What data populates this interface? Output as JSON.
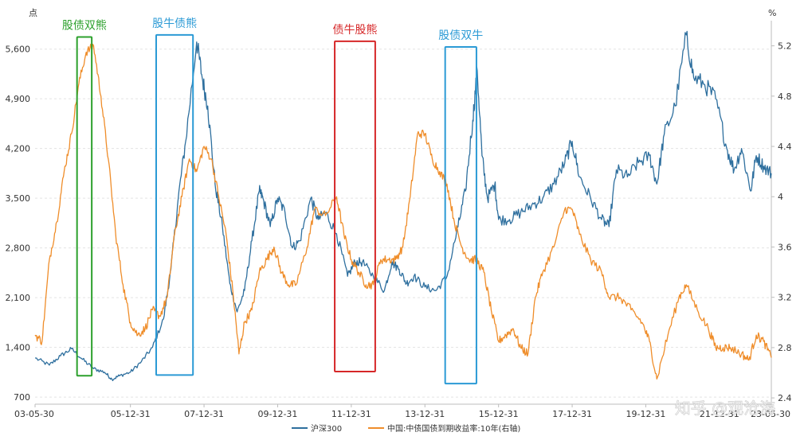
{
  "chart_data": {
    "type": "line",
    "left_unit": "点",
    "right_unit": "%",
    "y_left": {
      "ticks": [
        700,
        1400,
        2100,
        2800,
        3500,
        4200,
        4900,
        5600
      ],
      "tick_labels": [
        "700",
        "1,400",
        "2,100",
        "2,800",
        "3,500",
        "4,200",
        "4,900",
        "5,600"
      ],
      "range": [
        600,
        6000
      ]
    },
    "y_right": {
      "ticks": [
        2.4,
        2.8,
        3.2,
        3.6,
        4.0,
        4.4,
        4.8,
        5.2
      ],
      "tick_labels": [
        "2.4",
        "2.8",
        "3.2",
        "3.6",
        "4",
        "4.4",
        "4.8",
        "5.2"
      ],
      "range": [
        2.35,
        5.4
      ]
    },
    "x_axis": {
      "range": [
        2003.41,
        2023.41
      ],
      "ticks": [
        2003.41,
        2006.0,
        2008.0,
        2010.0,
        2012.0,
        2014.0,
        2016.0,
        2018.0,
        2020.0,
        2022.0,
        2023.41
      ],
      "tick_labels": [
        "03-05-30",
        "05-12-31",
        "07-12-31",
        "09-12-31",
        "11-12-31",
        "13-12-31",
        "15-12-31",
        "17-12-31",
        "19-12-31",
        "21-12-31",
        "23-05-30"
      ]
    },
    "grid": true,
    "legend_position": "bottom",
    "series": [
      {
        "name": "沪深300",
        "axis": "left",
        "color": "#2e6f9e",
        "points": [
          [
            2003.41,
            1250
          ],
          [
            2003.8,
            1150
          ],
          [
            2004.1,
            1280
          ],
          [
            2004.4,
            1380
          ],
          [
            2004.7,
            1230
          ],
          [
            2005.0,
            1100
          ],
          [
            2005.3,
            1050
          ],
          [
            2005.5,
            950
          ],
          [
            2005.7,
            1000
          ],
          [
            2006.0,
            1050
          ],
          [
            2006.3,
            1200
          ],
          [
            2006.6,
            1400
          ],
          [
            2006.9,
            1800
          ],
          [
            2007.1,
            2500
          ],
          [
            2007.3,
            3500
          ],
          [
            2007.5,
            4300
          ],
          [
            2007.8,
            5700
          ],
          [
            2007.95,
            5200
          ],
          [
            2008.1,
            4800
          ],
          [
            2008.3,
            3700
          ],
          [
            2008.5,
            3100
          ],
          [
            2008.7,
            2300
          ],
          [
            2008.9,
            1900
          ],
          [
            2009.1,
            2200
          ],
          [
            2009.3,
            2900
          ],
          [
            2009.5,
            3600
          ],
          [
            2009.6,
            3500
          ],
          [
            2009.8,
            3100
          ],
          [
            2010.0,
            3500
          ],
          [
            2010.2,
            3300
          ],
          [
            2010.4,
            2800
          ],
          [
            2010.6,
            2900
          ],
          [
            2010.9,
            3500
          ],
          [
            2011.1,
            3200
          ],
          [
            2011.3,
            3300
          ],
          [
            2011.6,
            3000
          ],
          [
            2011.9,
            2400
          ],
          [
            2012.1,
            2600
          ],
          [
            2012.3,
            2600
          ],
          [
            2012.6,
            2400
          ],
          [
            2012.9,
            2200
          ],
          [
            2013.1,
            2600
          ],
          [
            2013.3,
            2500
          ],
          [
            2013.5,
            2300
          ],
          [
            2013.7,
            2400
          ],
          [
            2014.0,
            2250
          ],
          [
            2014.3,
            2200
          ],
          [
            2014.6,
            2400
          ],
          [
            2014.9,
            3100
          ],
          [
            2015.1,
            3600
          ],
          [
            2015.3,
            4600
          ],
          [
            2015.42,
            5300
          ],
          [
            2015.55,
            4100
          ],
          [
            2015.7,
            3500
          ],
          [
            2015.9,
            3700
          ],
          [
            2016.0,
            3200
          ],
          [
            2016.3,
            3200
          ],
          [
            2016.6,
            3300
          ],
          [
            2016.9,
            3400
          ],
          [
            2017.2,
            3500
          ],
          [
            2017.5,
            3700
          ],
          [
            2017.8,
            4000
          ],
          [
            2018.0,
            4300
          ],
          [
            2018.2,
            3800
          ],
          [
            2018.5,
            3500
          ],
          [
            2018.8,
            3200
          ],
          [
            2019.0,
            3100
          ],
          [
            2019.2,
            3900
          ],
          [
            2019.5,
            3800
          ],
          [
            2019.8,
            4000
          ],
          [
            2020.1,
            4100
          ],
          [
            2020.3,
            3700
          ],
          [
            2020.5,
            4400
          ],
          [
            2020.8,
            4800
          ],
          [
            2021.1,
            5800
          ],
          [
            2021.3,
            5200
          ],
          [
            2021.6,
            5100
          ],
          [
            2021.9,
            4900
          ],
          [
            2022.2,
            4200
          ],
          [
            2022.4,
            3900
          ],
          [
            2022.6,
            4200
          ],
          [
            2022.85,
            3600
          ],
          [
            2023.0,
            4100
          ],
          [
            2023.2,
            3950
          ],
          [
            2023.41,
            3850
          ]
        ]
      },
      {
        "name": "中国:中债国债到期收益率:10年(右轴)",
        "axis": "right",
        "color": "#ef8d2a",
        "points": [
          [
            2003.41,
            2.9
          ],
          [
            2003.6,
            2.85
          ],
          [
            2003.8,
            3.5
          ],
          [
            2004.0,
            3.8
          ],
          [
            2004.2,
            4.2
          ],
          [
            2004.4,
            4.5
          ],
          [
            2004.6,
            4.9
          ],
          [
            2004.8,
            5.15
          ],
          [
            2005.0,
            5.2
          ],
          [
            2005.2,
            4.8
          ],
          [
            2005.4,
            4.3
          ],
          [
            2005.6,
            3.7
          ],
          [
            2005.8,
            3.3
          ],
          [
            2006.0,
            3.0
          ],
          [
            2006.2,
            2.9
          ],
          [
            2006.4,
            2.95
          ],
          [
            2006.6,
            3.1
          ],
          [
            2006.8,
            3.05
          ],
          [
            2007.0,
            3.2
          ],
          [
            2007.2,
            3.7
          ],
          [
            2007.4,
            4.0
          ],
          [
            2007.6,
            4.3
          ],
          [
            2007.8,
            4.2
          ],
          [
            2008.0,
            4.4
          ],
          [
            2008.2,
            4.3
          ],
          [
            2008.4,
            4.0
          ],
          [
            2008.6,
            3.7
          ],
          [
            2008.8,
            3.2
          ],
          [
            2008.95,
            2.75
          ],
          [
            2009.1,
            3.0
          ],
          [
            2009.3,
            3.1
          ],
          [
            2009.5,
            3.4
          ],
          [
            2009.7,
            3.5
          ],
          [
            2009.9,
            3.6
          ],
          [
            2010.1,
            3.4
          ],
          [
            2010.3,
            3.3
          ],
          [
            2010.5,
            3.3
          ],
          [
            2010.8,
            3.6
          ],
          [
            2011.0,
            3.9
          ],
          [
            2011.3,
            3.85
          ],
          [
            2011.6,
            4.0
          ],
          [
            2011.8,
            3.7
          ],
          [
            2012.0,
            3.5
          ],
          [
            2012.2,
            3.4
          ],
          [
            2012.4,
            3.3
          ],
          [
            2012.6,
            3.3
          ],
          [
            2012.8,
            3.5
          ],
          [
            2013.0,
            3.5
          ],
          [
            2013.2,
            3.5
          ],
          [
            2013.4,
            3.6
          ],
          [
            2013.6,
            4.0
          ],
          [
            2013.8,
            4.5
          ],
          [
            2014.0,
            4.5
          ],
          [
            2014.2,
            4.3
          ],
          [
            2014.4,
            4.2
          ],
          [
            2014.6,
            4.1
          ],
          [
            2014.8,
            3.8
          ],
          [
            2015.0,
            3.6
          ],
          [
            2015.2,
            3.5
          ],
          [
            2015.4,
            3.5
          ],
          [
            2015.6,
            3.4
          ],
          [
            2015.8,
            3.1
          ],
          [
            2016.0,
            2.85
          ],
          [
            2016.2,
            2.9
          ],
          [
            2016.4,
            2.95
          ],
          [
            2016.6,
            2.8
          ],
          [
            2016.8,
            2.75
          ],
          [
            2017.0,
            3.2
          ],
          [
            2017.2,
            3.4
          ],
          [
            2017.5,
            3.6
          ],
          [
            2017.8,
            3.9
          ],
          [
            2018.0,
            3.9
          ],
          [
            2018.2,
            3.7
          ],
          [
            2018.5,
            3.5
          ],
          [
            2018.8,
            3.4
          ],
          [
            2019.0,
            3.2
          ],
          [
            2019.3,
            3.2
          ],
          [
            2019.6,
            3.1
          ],
          [
            2019.9,
            3.0
          ],
          [
            2020.1,
            2.85
          ],
          [
            2020.3,
            2.55
          ],
          [
            2020.6,
            2.9
          ],
          [
            2020.9,
            3.2
          ],
          [
            2021.1,
            3.3
          ],
          [
            2021.4,
            3.1
          ],
          [
            2021.7,
            2.95
          ],
          [
            2021.9,
            2.8
          ],
          [
            2022.1,
            2.8
          ],
          [
            2022.3,
            2.8
          ],
          [
            2022.6,
            2.75
          ],
          [
            2022.8,
            2.7
          ],
          [
            2023.0,
            2.9
          ],
          [
            2023.2,
            2.85
          ],
          [
            2023.41,
            2.72
          ]
        ]
      }
    ],
    "annotations": [
      {
        "label": "股债双熊",
        "color": "#2ca02c",
        "x0": 2004.55,
        "x1": 2004.95,
        "y_top": 5770,
        "y_bottom": 1000
      },
      {
        "label": "股牛债熊",
        "color": "#2b9ad5",
        "x0": 2006.7,
        "x1": 2007.7,
        "y_top": 5800,
        "y_bottom": 1010
      },
      {
        "label": "债牛股熊",
        "color": "#d62728",
        "x0": 2011.55,
        "x1": 2012.65,
        "y_top": 5710,
        "y_bottom": 1060
      },
      {
        "label": "股债双牛",
        "color": "#2b9ad5",
        "x0": 2014.55,
        "x1": 2015.4,
        "y_top": 5630,
        "y_bottom": 890
      }
    ],
    "watermark": "知乎 @观沧海"
  }
}
